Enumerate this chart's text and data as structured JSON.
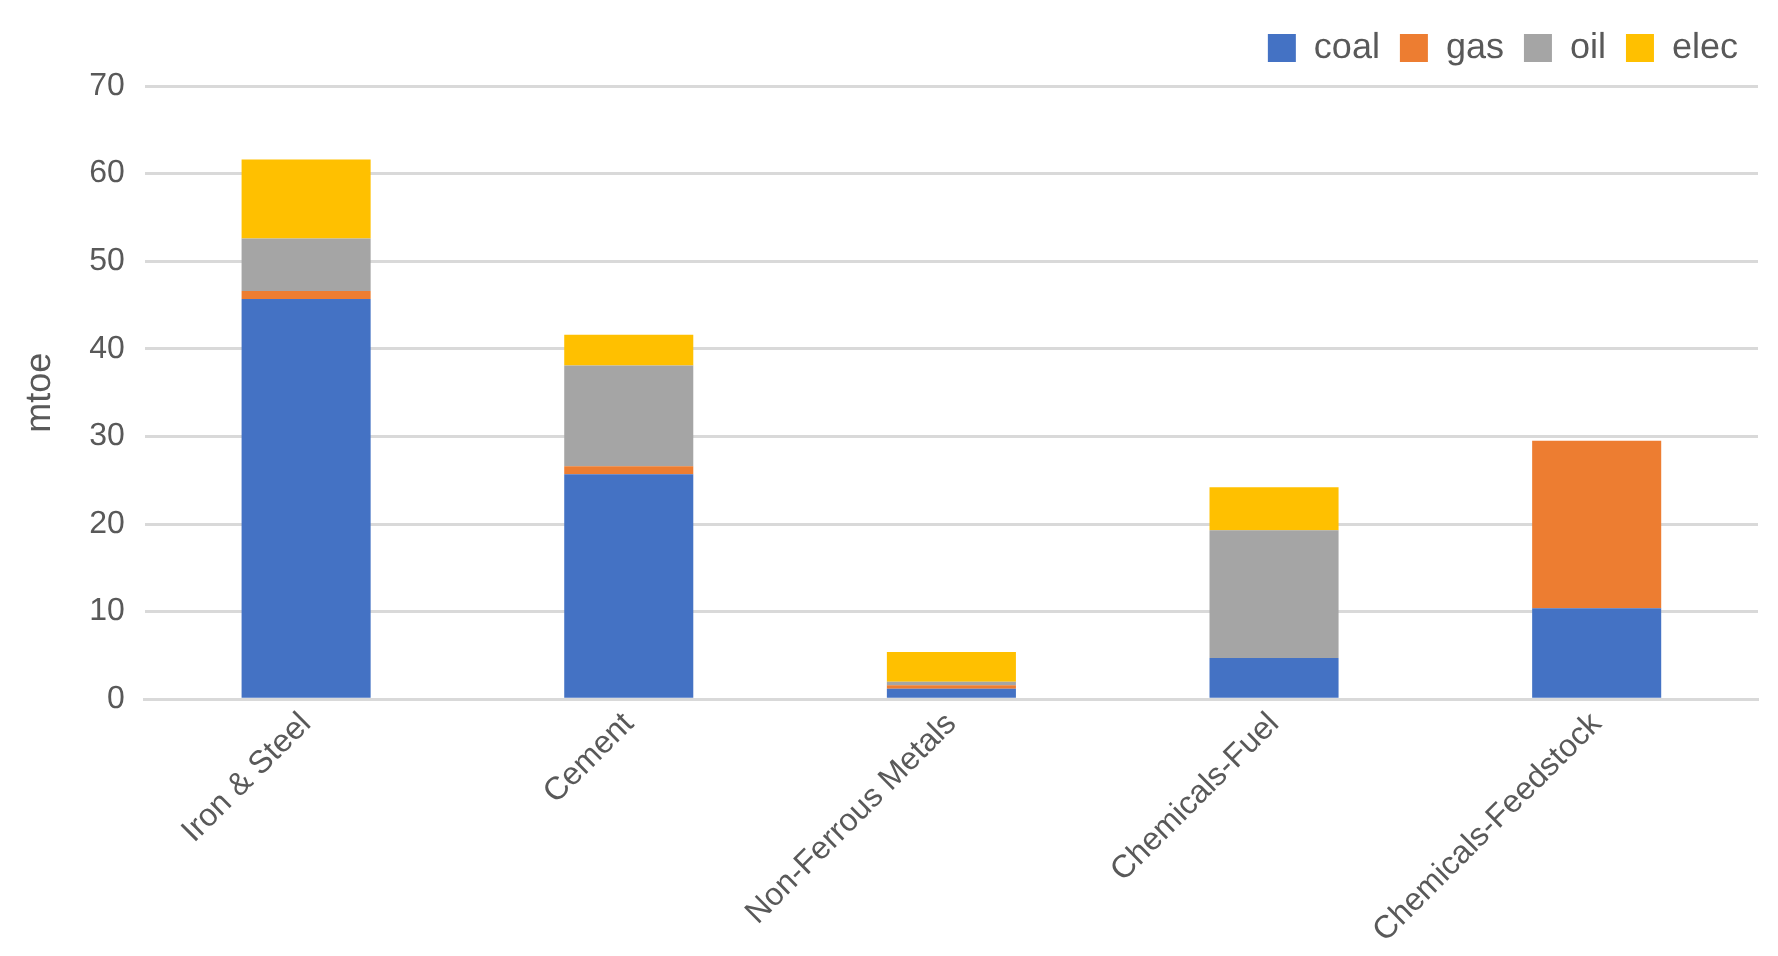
{
  "chart_data": {
    "type": "bar",
    "stacked": true,
    "ylabel": "mtoe",
    "categories": [
      "Iron & Steel",
      "Cement",
      "Non-Ferrous Metals",
      "Chemicals-Fuel",
      "Chemicals-Feedstock"
    ],
    "series": [
      {
        "name": "coal",
        "color": "#4472c4",
        "values": [
          45.7,
          25.7,
          1.2,
          4.7,
          10.4
        ]
      },
      {
        "name": "gas",
        "color": "#ed7d31",
        "values": [
          0.9,
          0.9,
          0.4,
          0,
          19.1
        ]
      },
      {
        "name": "oil",
        "color": "#a5a5a5",
        "values": [
          6.0,
          11.5,
          0.4,
          14.6,
          0
        ]
      },
      {
        "name": "elec",
        "color": "#ffc000",
        "values": [
          9.0,
          3.5,
          3.4,
          4.9,
          0
        ]
      }
    ],
    "ylim": [
      0,
      70
    ],
    "yticks": [
      0,
      10,
      20,
      30,
      40,
      50,
      60,
      70
    ],
    "grid": "y",
    "legend": "top right"
  }
}
